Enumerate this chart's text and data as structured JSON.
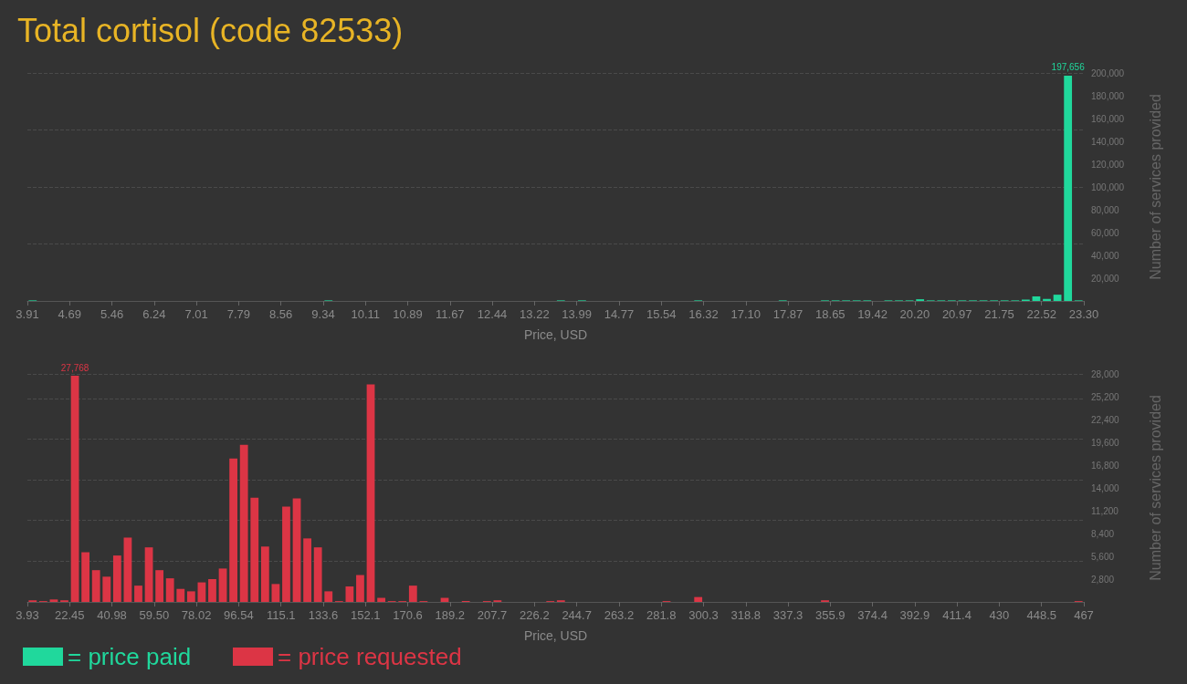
{
  "chart_data": [
    {
      "type": "histogram",
      "title": "Total cortisol (code 82533)",
      "xlabel": "Price, USD",
      "ylabel": "Number of services provided",
      "grid": "y",
      "legend": "bottom left",
      "bins": [
        3.91,
        4.1039,
        4.2978,
        4.4917,
        4.6856,
        4.8795,
        5.0734,
        5.2673,
        5.4612,
        5.6551,
        5.849,
        6.0429,
        6.2368,
        6.4307,
        6.6246,
        6.8185,
        7.0124,
        7.2063,
        7.4002,
        7.5941,
        7.788,
        7.9819,
        8.1758,
        8.3697,
        8.5636,
        8.7575,
        8.9514,
        9.1453,
        9.3392,
        9.5331,
        9.727,
        9.9209,
        10.1148,
        10.3087,
        10.5026,
        10.6965,
        10.8904,
        11.0843,
        11.2782,
        11.4721,
        11.666,
        11.8599,
        12.0538,
        12.2477,
        12.4416,
        12.6355,
        12.8294,
        13.0233,
        13.2172,
        13.4111,
        13.605,
        13.7989,
        13.9928,
        14.1867,
        14.3806,
        14.5745,
        14.7684,
        14.9623,
        15.1562,
        15.3501,
        15.544,
        15.7379,
        15.9318,
        16.1257,
        16.3196,
        16.5135,
        16.7074,
        16.9013,
        17.0952,
        17.2891,
        17.483,
        17.6769,
        17.8708,
        18.0647,
        18.2586,
        18.4525,
        18.6464,
        18.8403,
        19.0342,
        19.2281,
        19.422,
        19.6159,
        19.8098,
        20.0037,
        20.1976,
        20.3915,
        20.5854,
        20.7793,
        20.9732,
        21.1671,
        21.361,
        21.5549,
        21.7488,
        21.9427,
        22.1366,
        22.3305,
        22.5244,
        22.7183,
        22.9122,
        23.1061,
        23.3
      ],
      "series": [
        {
          "name": "= price paid",
          "color": "#20d89c",
          "values": [
            500,
            0,
            0,
            0,
            0,
            0,
            0,
            0,
            0,
            0,
            0,
            0,
            0,
            0,
            0,
            0,
            0,
            0,
            0,
            0,
            0,
            0,
            0,
            0,
            0,
            0,
            0,
            0,
            500,
            0,
            0,
            0,
            0,
            0,
            0,
            0,
            0,
            0,
            0,
            0,
            0,
            0,
            0,
            0,
            0,
            0,
            0,
            0,
            0,
            0,
            500,
            0,
            500,
            0,
            0,
            0,
            0,
            0,
            0,
            0,
            0,
            0,
            0,
            500,
            0,
            0,
            0,
            0,
            0,
            0,
            0,
            500,
            0,
            0,
            0,
            500,
            500,
            500,
            500,
            500,
            0,
            500,
            500,
            500,
            1500,
            500,
            500,
            500,
            500,
            500,
            500,
            500,
            500,
            500,
            1200,
            4000,
            1800,
            5500,
            197656,
            500
          ],
          "value_labels": [
            null,
            null,
            null,
            null,
            null,
            null,
            null,
            null,
            null,
            null,
            null,
            null,
            null,
            null,
            null,
            null,
            null,
            null,
            null,
            null,
            null,
            null,
            null,
            null,
            null,
            null,
            null,
            null,
            null,
            null,
            null,
            null,
            null,
            null,
            null,
            null,
            null,
            null,
            null,
            null,
            null,
            null,
            null,
            null,
            null,
            null,
            null,
            null,
            null,
            null,
            null,
            null,
            null,
            null,
            null,
            null,
            null,
            null,
            null,
            null,
            null,
            null,
            null,
            null,
            null,
            null,
            null,
            null,
            null,
            null,
            null,
            null,
            null,
            null,
            null,
            null,
            null,
            null,
            null,
            null,
            null,
            null,
            null,
            null,
            null,
            null,
            null,
            null,
            null,
            null,
            null,
            null,
            null,
            null,
            null,
            null,
            null,
            null,
            "197,656",
            null
          ]
        }
      ],
      "xticks": [
        {
          "value": 3.91,
          "label": "3.91"
        },
        {
          "value": 4.6856,
          "label": "4.69"
        },
        {
          "value": 5.4612,
          "label": "5.46"
        },
        {
          "value": 6.2368,
          "label": "6.24"
        },
        {
          "value": 7.0124,
          "label": "7.01"
        },
        {
          "value": 7.788,
          "label": "7.79"
        },
        {
          "value": 8.5636,
          "label": "8.56"
        },
        {
          "value": 9.3392,
          "label": "9.34"
        },
        {
          "value": 10.1148,
          "label": "10.11"
        },
        {
          "value": 10.8904,
          "label": "10.89"
        },
        {
          "value": 11.666,
          "label": "11.67"
        },
        {
          "value": 12.4416,
          "label": "12.44"
        },
        {
          "value": 13.2172,
          "label": "13.22"
        },
        {
          "value": 13.9928,
          "label": "13.99"
        },
        {
          "value": 14.7684,
          "label": "14.77"
        },
        {
          "value": 15.544,
          "label": "15.54"
        },
        {
          "value": 16.3196,
          "label": "16.32"
        },
        {
          "value": 17.0952,
          "label": "17.10"
        },
        {
          "value": 17.8708,
          "label": "17.87"
        },
        {
          "value": 18.6464,
          "label": "18.65"
        },
        {
          "value": 19.422,
          "label": "19.42"
        },
        {
          "value": 20.1976,
          "label": "20.20"
        },
        {
          "value": 20.9732,
          "label": "20.97"
        },
        {
          "value": 21.7488,
          "label": "21.75"
        },
        {
          "value": 22.5244,
          "label": "22.52"
        },
        {
          "value": 23.3,
          "label": "23.30"
        }
      ],
      "xlim": [
        3.91,
        23.3
      ],
      "ylim": [
        0,
        200000
      ],
      "yticks": [
        {
          "value": 20000,
          "label": "20,000"
        },
        {
          "value": 40000,
          "label": "40,000"
        },
        {
          "value": 60000,
          "label": "60,000"
        },
        {
          "value": 80000,
          "label": "80,000"
        },
        {
          "value": 100000,
          "label": "100,000"
        },
        {
          "value": 120000,
          "label": "120,000"
        },
        {
          "value": 140000,
          "label": "140,000"
        },
        {
          "value": 160000,
          "label": "160,000"
        },
        {
          "value": 180000,
          "label": "180,000"
        },
        {
          "value": 200000,
          "label": "200,000"
        }
      ]
    },
    {
      "type": "histogram",
      "xlabel": "Price, USD",
      "ylabel": "Number of services provided",
      "grid": "y",
      "legend": "bottom left",
      "bins": [
        3.93,
        8.56,
        13.19,
        17.82,
        22.45,
        27.08,
        31.71,
        36.34,
        40.98,
        45.61,
        50.24,
        54.87,
        59.5,
        64.13,
        68.76,
        73.39,
        78.02,
        82.65,
        87.28,
        91.91,
        96.54,
        101.17,
        105.81,
        110.44,
        115.07,
        119.7,
        124.33,
        128.96,
        133.59,
        138.22,
        142.85,
        147.48,
        152.11,
        156.74,
        161.37,
        166,
        170.64,
        175.27,
        179.9,
        184.53,
        189.16,
        193.79,
        198.42,
        203.05,
        207.68,
        212.31,
        216.94,
        221.57,
        226.2,
        230.83,
        235.47,
        240.1,
        244.73,
        249.36,
        253.99,
        258.62,
        263.25,
        267.88,
        272.51,
        277.14,
        281.77,
        286.4,
        291.03,
        295.66,
        300.29,
        304.93,
        309.56,
        314.19,
        318.82,
        323.45,
        328.08,
        332.71,
        337.34,
        341.97,
        346.6,
        351.23,
        355.86,
        360.49,
        365.12,
        369.76,
        374.39,
        379.02,
        383.65,
        388.28,
        392.91,
        397.54,
        402.17,
        406.8,
        411.43,
        416.06,
        420.69,
        425.32,
        429.95,
        434.59,
        439.22,
        443.85,
        448.48,
        453.11,
        457.74,
        462.37,
        467
      ],
      "series": [
        {
          "name": "= price requested",
          "color": "#dc3545",
          "values": [
            200,
            100,
            300,
            200,
            27768,
            6100,
            3900,
            3100,
            5700,
            7900,
            2000,
            6700,
            3900,
            2900,
            1600,
            1300,
            2400,
            2800,
            4100,
            17600,
            19300,
            12800,
            6800,
            2200,
            11700,
            12700,
            7800,
            6700,
            1300,
            100,
            1900,
            3300,
            26700,
            500,
            100,
            100,
            2000,
            100,
            0,
            500,
            0,
            100,
            0,
            100,
            200,
            0,
            0,
            0,
            0,
            100,
            200,
            0,
            0,
            0,
            0,
            0,
            0,
            0,
            0,
            0,
            100,
            0,
            0,
            600,
            0,
            0,
            0,
            0,
            0,
            0,
            0,
            0,
            0,
            0,
            0,
            200,
            0,
            0,
            0,
            0,
            0,
            0,
            0,
            0,
            0,
            0,
            0,
            0,
            0,
            0,
            0,
            0,
            0,
            0,
            0,
            0,
            0,
            0,
            0,
            100
          ],
          "value_labels": [
            null,
            null,
            null,
            null,
            "27,768",
            null,
            null,
            null,
            null,
            null,
            null,
            null,
            null,
            null,
            null,
            null,
            null,
            null,
            null,
            null,
            null,
            null,
            null,
            null,
            null,
            null,
            null,
            null,
            null,
            null,
            null,
            null,
            null,
            null,
            null,
            null,
            null,
            null,
            null,
            null,
            null,
            null,
            null,
            null,
            null,
            null,
            null,
            null,
            null,
            null,
            null,
            null,
            null,
            null,
            null,
            null,
            null,
            null,
            null,
            null,
            null,
            null,
            null,
            null,
            null,
            null,
            null,
            null,
            null,
            null,
            null,
            null,
            null,
            null,
            null,
            null,
            null,
            null,
            null,
            null,
            null,
            null,
            null,
            null,
            null,
            null,
            null,
            null,
            null,
            null,
            null,
            null,
            null,
            null,
            null,
            null,
            null,
            null,
            null,
            null
          ]
        }
      ],
      "xticks": [
        {
          "value": 3.93,
          "label": "3.93"
        },
        {
          "value": 22.45,
          "label": "22.45"
        },
        {
          "value": 40.98,
          "label": "40.98"
        },
        {
          "value": 59.5,
          "label": "59.50"
        },
        {
          "value": 78.02,
          "label": "78.02"
        },
        {
          "value": 96.54,
          "label": "96.54"
        },
        {
          "value": 115.07,
          "label": "115.1"
        },
        {
          "value": 133.59,
          "label": "133.6"
        },
        {
          "value": 152.11,
          "label": "152.1"
        },
        {
          "value": 170.64,
          "label": "170.6"
        },
        {
          "value": 189.16,
          "label": "189.2"
        },
        {
          "value": 207.68,
          "label": "207.7"
        },
        {
          "value": 226.2,
          "label": "226.2"
        },
        {
          "value": 244.73,
          "label": "244.7"
        },
        {
          "value": 263.25,
          "label": "263.2"
        },
        {
          "value": 281.77,
          "label": "281.8"
        },
        {
          "value": 300.29,
          "label": "300.3"
        },
        {
          "value": 318.82,
          "label": "318.8"
        },
        {
          "value": 337.34,
          "label": "337.3"
        },
        {
          "value": 355.86,
          "label": "355.9"
        },
        {
          "value": 374.39,
          "label": "374.4"
        },
        {
          "value": 392.91,
          "label": "392.9"
        },
        {
          "value": 411.43,
          "label": "411.4"
        },
        {
          "value": 429.95,
          "label": "430"
        },
        {
          "value": 448.48,
          "label": "448.5"
        },
        {
          "value": 467,
          "label": "467"
        }
      ],
      "xlim": [
        3.93,
        467
      ],
      "ylim": [
        0,
        28000
      ],
      "yticks": [
        {
          "value": 2800,
          "label": "2,800"
        },
        {
          "value": 5600,
          "label": "5,600"
        },
        {
          "value": 8400,
          "label": "8,400"
        },
        {
          "value": 11200,
          "label": "11,200"
        },
        {
          "value": 14000,
          "label": "14,000"
        },
        {
          "value": 16800,
          "label": "16,800"
        },
        {
          "value": 19600,
          "label": "19,600"
        },
        {
          "value": 22400,
          "label": "22,400"
        },
        {
          "value": 25200,
          "label": "25,200"
        },
        {
          "value": 28000,
          "label": "28,000"
        }
      ]
    }
  ]
}
